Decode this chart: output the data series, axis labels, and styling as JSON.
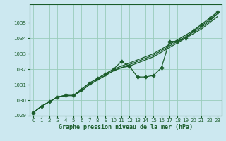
{
  "bg_color": "#cce8f0",
  "grid_color": "#99ccbb",
  "line_color": "#1a5c2a",
  "xlabel": "Graphe pression niveau de la mer (hPa)",
  "ylim": [
    1029,
    1036.2
  ],
  "xlim": [
    -0.5,
    23.5
  ],
  "yticks": [
    1029,
    1030,
    1031,
    1032,
    1033,
    1034,
    1035
  ],
  "xticks": [
    0,
    1,
    2,
    3,
    4,
    5,
    6,
    7,
    8,
    9,
    10,
    11,
    12,
    13,
    14,
    15,
    16,
    17,
    18,
    19,
    20,
    21,
    22,
    23
  ],
  "series_straight": [
    [
      1029.2,
      1029.6,
      1029.9,
      1030.2,
      1030.3,
      1030.3,
      1030.6,
      1031.0,
      1031.3,
      1031.6,
      1031.9,
      1032.1,
      1032.2,
      1032.4,
      1032.6,
      1032.8,
      1033.1,
      1033.4,
      1033.7,
      1034.0,
      1034.3,
      1034.6,
      1035.0,
      1035.4
    ],
    [
      1029.2,
      1029.6,
      1029.9,
      1030.2,
      1030.3,
      1030.3,
      1030.6,
      1031.0,
      1031.3,
      1031.6,
      1031.9,
      1032.1,
      1032.3,
      1032.5,
      1032.7,
      1032.9,
      1033.2,
      1033.5,
      1033.8,
      1034.1,
      1034.4,
      1034.7,
      1035.1,
      1035.6
    ],
    [
      1029.2,
      1029.6,
      1029.9,
      1030.2,
      1030.3,
      1030.3,
      1030.7,
      1031.1,
      1031.4,
      1031.7,
      1032.0,
      1032.2,
      1032.4,
      1032.6,
      1032.8,
      1033.0,
      1033.3,
      1033.6,
      1033.9,
      1034.2,
      1034.5,
      1034.8,
      1035.2,
      1035.7
    ]
  ],
  "series_dip": [
    1029.2,
    1029.6,
    1029.9,
    1030.2,
    1030.3,
    1030.3,
    1030.7,
    1031.1,
    1031.4,
    1031.7,
    1032.0,
    1032.5,
    1032.2,
    1031.5,
    1031.5,
    1031.6,
    1032.1,
    1033.8,
    1033.8,
    1034.0,
    1034.5,
    1034.9,
    1035.3,
    1035.7
  ]
}
